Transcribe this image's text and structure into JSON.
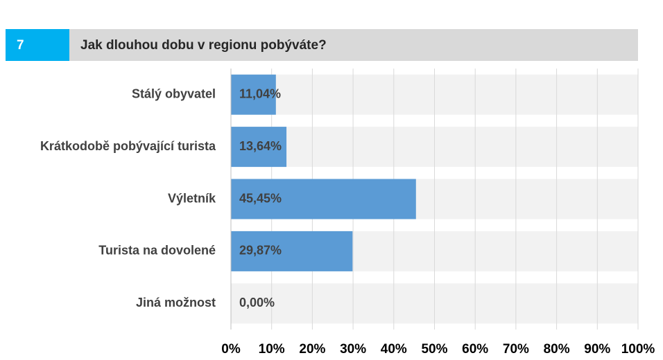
{
  "chart_data": {
    "type": "bar",
    "orientation": "horizontal",
    "question_number": "7",
    "title": "Jak dlouhou dobu v regionu pobýváte?",
    "categories": [
      "Stálý obyvatel",
      "Krátkodobě pobývající turista",
      "Výletník",
      "Turista na dovolené",
      "Jiná možnost"
    ],
    "values": [
      11.04,
      13.64,
      45.45,
      29.87,
      0
    ],
    "value_labels": [
      "11,04%",
      "13,64%",
      "45,45%",
      "29,87%",
      "0,00%"
    ],
    "color": "#5b9bd5",
    "xlim": [
      0,
      100
    ],
    "xticks": [
      {
        "value": 0,
        "label": "0%"
      },
      {
        "value": 10,
        "label": "10%"
      },
      {
        "value": 20,
        "label": "20%"
      },
      {
        "value": 30,
        "label": "30%"
      },
      {
        "value": 40,
        "label": "40%"
      },
      {
        "value": 50,
        "label": "50%"
      },
      {
        "value": 60,
        "label": "60%"
      },
      {
        "value": 70,
        "label": "70%"
      },
      {
        "value": 80,
        "label": "80%"
      },
      {
        "value": 90,
        "label": "90%"
      },
      {
        "value": 100,
        "label": "100%"
      }
    ],
    "grid": true
  }
}
